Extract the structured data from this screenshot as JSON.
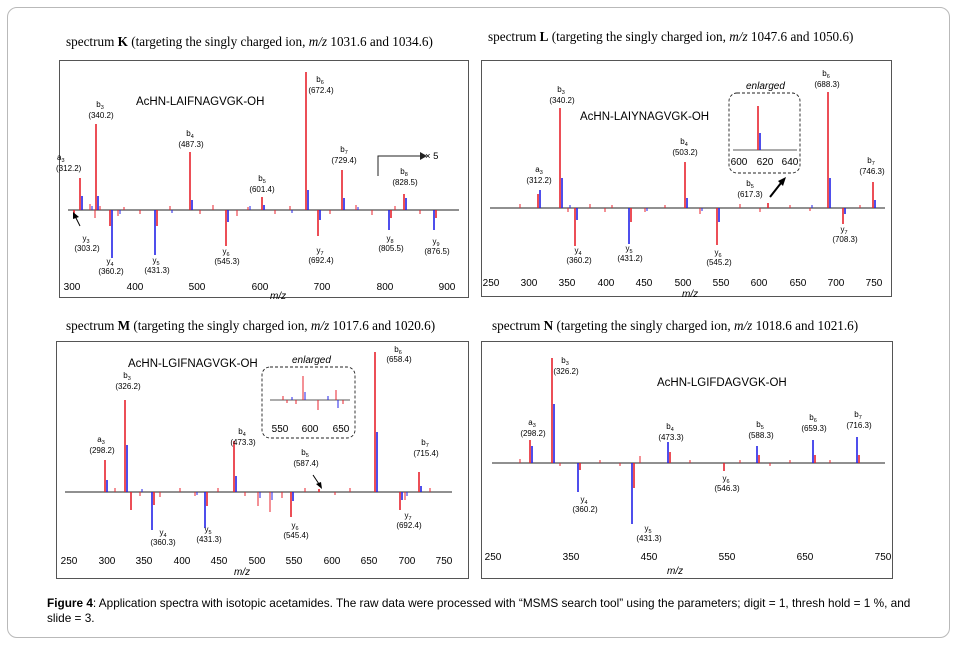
{
  "colors": {
    "red": "#e8232d",
    "blue": "#2323e8",
    "axis": "#222222",
    "frame": "#555555"
  },
  "panels": [
    {
      "id": "K",
      "heading": {
        "pre": "spectrum ",
        "letter": "K",
        "mid": " (targeting the singly charged ion, ",
        "mz": "m/z",
        "post": " 1031.6 and 1034.6)"
      },
      "peptide": "AcHN-LAIFNAGVGK-OH",
      "xlabel": "m/z",
      "x_ticks": [
        "300",
        "400",
        "500",
        "600",
        "700",
        "800",
        "900"
      ],
      "zoom_note": "× 5",
      "labels": [
        {
          "ion": "a",
          "sub": "3",
          "mz": "(312.2)"
        },
        {
          "ion": "b",
          "sub": "3",
          "mz": "(340.2)"
        },
        {
          "ion": "b",
          "sub": "4",
          "mz": "(487.3)"
        },
        {
          "ion": "b",
          "sub": "5",
          "mz": "(601.4)"
        },
        {
          "ion": "b",
          "sub": "6",
          "mz": "(672.4)"
        },
        {
          "ion": "b",
          "sub": "7",
          "mz": "(729.4)"
        },
        {
          "ion": "b",
          "sub": "8",
          "mz": "(828.5)"
        },
        {
          "ion": "y",
          "sub": "3",
          "mz": "(303.2)"
        },
        {
          "ion": "y",
          "sub": "4",
          "mz": "(360.2)"
        },
        {
          "ion": "y",
          "sub": "5",
          "mz": "(431.3)"
        },
        {
          "ion": "y",
          "sub": "6",
          "mz": "(545.3)"
        },
        {
          "ion": "y",
          "sub": "7",
          "mz": "(692.4)"
        },
        {
          "ion": "y",
          "sub": "8",
          "mz": "(805.5)"
        },
        {
          "ion": "y",
          "sub": "9",
          "mz": "(876.5)"
        }
      ]
    },
    {
      "id": "L",
      "heading": {
        "pre": "spectrum ",
        "letter": "L",
        "mid": " (targeting the singly charged ion, ",
        "mz": "m/z",
        "post": " 1047.6 and 1050.6)"
      },
      "peptide": "AcHN-LAIYNAGVGK-OH",
      "xlabel": "m/z",
      "x_ticks": [
        "250",
        "300",
        "350",
        "400",
        "450",
        "500",
        "550",
        "600",
        "650",
        "700",
        "750"
      ],
      "inset": {
        "title": "enlarged",
        "ticks": [
          "600",
          "620",
          "640"
        ]
      },
      "labels": [
        {
          "ion": "a",
          "sub": "3",
          "mz": "(312.2)"
        },
        {
          "ion": "b",
          "sub": "3",
          "mz": "(340.2)"
        },
        {
          "ion": "b",
          "sub": "4",
          "mz": "(503.2)"
        },
        {
          "ion": "b",
          "sub": "5",
          "mz": "(617.3)"
        },
        {
          "ion": "b",
          "sub": "6",
          "mz": "(688.3)"
        },
        {
          "ion": "b",
          "sub": "7",
          "mz": "(746.3)"
        },
        {
          "ion": "y",
          "sub": "4",
          "mz": "(360.2)"
        },
        {
          "ion": "y",
          "sub": "5",
          "mz": "(431.2)"
        },
        {
          "ion": "y",
          "sub": "6",
          "mz": "(545.2)"
        },
        {
          "ion": "y",
          "sub": "7",
          "mz": "(708.3)"
        }
      ]
    },
    {
      "id": "M",
      "heading": {
        "pre": "spectrum ",
        "letter": "M",
        "mid": " (targeting the singly charged ion, ",
        "mz": "m/z",
        "post": " 1017.6 and 1020.6)"
      },
      "peptide": "AcHN-LGIFNAGVGK-OH",
      "xlabel": "m/z",
      "x_ticks": [
        "250",
        "300",
        "350",
        "400",
        "450",
        "500",
        "550",
        "600",
        "650",
        "700",
        "750"
      ],
      "inset": {
        "title": "enlarged",
        "ticks": [
          "550",
          "600",
          "650"
        ]
      },
      "labels": [
        {
          "ion": "a",
          "sub": "3",
          "mz": "(298.2)"
        },
        {
          "ion": "b",
          "sub": "3",
          "mz": "(326.2)"
        },
        {
          "ion": "b",
          "sub": "4",
          "mz": "(473.3)"
        },
        {
          "ion": "b",
          "sub": "5",
          "mz": "(587.4)"
        },
        {
          "ion": "b",
          "sub": "6",
          "mz": "(658.4)"
        },
        {
          "ion": "b",
          "sub": "7",
          "mz": "(715.4)"
        },
        {
          "ion": "y",
          "sub": "4",
          "mz": "(360.3)"
        },
        {
          "ion": "y",
          "sub": "5",
          "mz": "(431.3)"
        },
        {
          "ion": "y",
          "sub": "6",
          "mz": "(545.4)"
        },
        {
          "ion": "y",
          "sub": "7",
          "mz": "(692.4)"
        }
      ]
    },
    {
      "id": "N",
      "heading": {
        "pre": "spectrum ",
        "letter": "N",
        "mid": " (targeting the singly charged ion, ",
        "mz": "m/z",
        "post": " 1018.6 and 1021.6)"
      },
      "peptide": "AcHN-LGIFDAGVGK-OH",
      "xlabel": "m/z",
      "x_ticks": [
        "250",
        "350",
        "450",
        "550",
        "650",
        "750"
      ],
      "labels": [
        {
          "ion": "a",
          "sub": "3",
          "mz": "(298.2)"
        },
        {
          "ion": "b",
          "sub": "3",
          "mz": "(326.2)"
        },
        {
          "ion": "b",
          "sub": "4",
          "mz": "(473.3)"
        },
        {
          "ion": "b",
          "sub": "5",
          "mz": "(588.3)"
        },
        {
          "ion": "b",
          "sub": "6",
          "mz": "(659.3)"
        },
        {
          "ion": "b",
          "sub": "7",
          "mz": "(716.3)"
        },
        {
          "ion": "y",
          "sub": "4",
          "mz": "(360.2)"
        },
        {
          "ion": "y",
          "sub": "5",
          "mz": "(431.3)"
        },
        {
          "ion": "y",
          "sub": "6",
          "mz": "(546.3)"
        }
      ]
    }
  ],
  "caption": {
    "label": "Figure 4",
    "text": ":  Application spectra with isotopic acetamides. The raw data were processed with “MSMS search tool” using the parameters; digit = 1, thresh hold = 1 %, and slide = 3."
  }
}
